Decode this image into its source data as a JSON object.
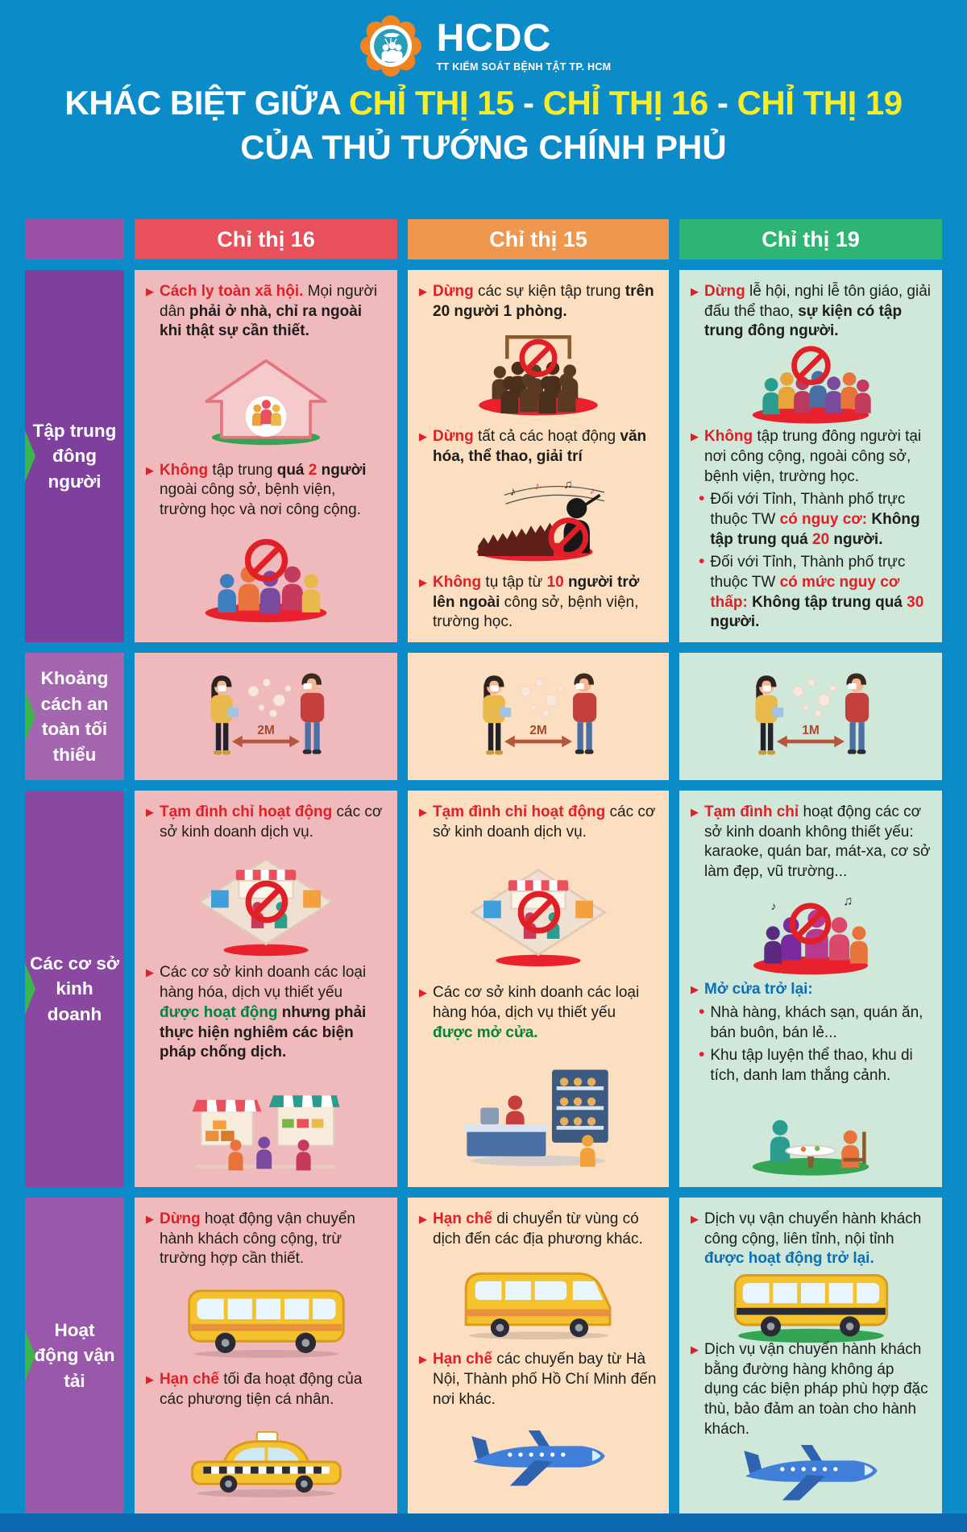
{
  "colors": {
    "background": "#0b8bc8",
    "accent_yellow": "#f9ed26",
    "directive16_red": "#e8505b",
    "directive15_orange": "#f0974f",
    "directive19_green": "#2fb573",
    "label_purple": "#8a48a1",
    "highlight_red": "#e01f26",
    "highlight_green": "#00843d",
    "highlight_blue": "#0c6fb5"
  },
  "icons": {
    "arrow": "▶",
    "dot": "•"
  },
  "logo": {
    "name": "HCDC",
    "subtitle": "TT KIỂM SOÁT BỆNH TẬT TP. HCM"
  },
  "title": {
    "line1": [
      {
        "t": "KHÁC BIỆT GIỮA ",
        "c": "w"
      },
      {
        "t": "CHỈ THỊ 15",
        "c": "y"
      },
      {
        "t": " -  ",
        "c": "w"
      },
      {
        "t": "CHỈ THỊ 16",
        "c": "y"
      },
      {
        "t": " -  ",
        "c": "w"
      },
      {
        "t": "CHỈ THỊ 19",
        "c": "y"
      }
    ],
    "line2": "CỦA THỦ TƯỚNG CHÍNH PHỦ"
  },
  "columns": {
    "c16": "Chỉ thị 16",
    "c15": "Chỉ thị 15",
    "c19": "Chỉ thị 19"
  },
  "rows": {
    "r1": "Tập trung đông người",
    "r2": "Khoảng cách an toàn tối thiểu",
    "r3": "Các cơ sở kinh doanh",
    "r4": "Hoạt động vận tải"
  },
  "distance": {
    "c16": "2M",
    "c15": "2M",
    "c19": "1M"
  },
  "cells": {
    "r1c16": {
      "i1": [
        {
          "t": "Cách ly toàn xã hội.",
          "c": "r"
        },
        {
          "t": " Mọi người dân "
        },
        {
          "t": "phải ở nhà, chỉ ra ngoài khi thật sự cần thiết.",
          "c": "k"
        }
      ],
      "i2": [
        {
          "t": "Không",
          "c": "r"
        },
        {
          "t": " tập trung "
        },
        {
          "t": "quá ",
          "c": "k"
        },
        {
          "t": "2",
          "c": "r"
        },
        {
          "t": " người",
          "c": "k"
        },
        {
          "t": " ngoài công sở, bệnh viện, trường học và nơi công cộng."
        }
      ]
    },
    "r1c15": {
      "i1": [
        {
          "t": "Dừng",
          "c": "r"
        },
        {
          "t": " các sự kiện tập trung "
        },
        {
          "t": "trên 20 người 1 phòng.",
          "c": "k"
        }
      ],
      "i2": [
        {
          "t": "Dừng",
          "c": "r"
        },
        {
          "t": " tất cả các hoạt động "
        },
        {
          "t": "văn hóa, thể thao, giải trí",
          "c": "k"
        }
      ],
      "i3": [
        {
          "t": "Không",
          "c": "r"
        },
        {
          "t": " tụ tập từ "
        },
        {
          "t": "10",
          "c": "r"
        },
        {
          "t": " người trở lên ngoài",
          "c": "k"
        },
        {
          "t": " công sở, bệnh viện, trường học."
        }
      ]
    },
    "r1c19": {
      "i1": [
        {
          "t": "Dừng",
          "c": "r"
        },
        {
          "t": " lễ hội, nghi lễ tôn giáo, giải đấu thể thao, "
        },
        {
          "t": "sự kiện có tập trung đông người.",
          "c": "k"
        }
      ],
      "i2": [
        {
          "t": "Không",
          "c": "r"
        },
        {
          "t": " tập trung đông người tại nơi công cộng, ngoài công sở, bệnh viện, trường học."
        }
      ],
      "b1": [
        {
          "t": "Đối với Tỉnh, Thành phố trực thuộc TW "
        },
        {
          "t": "có nguy cơ:",
          "c": "r"
        },
        {
          "t": " Không tập trung quá ",
          "c": "k"
        },
        {
          "t": "20",
          "c": "r"
        },
        {
          "t": " người.",
          "c": "k"
        }
      ],
      "b2": [
        {
          "t": "Đối với Tỉnh, Thành phố trực thuộc TW "
        },
        {
          "t": "có mức nguy cơ thấp:",
          "c": "r"
        },
        {
          "t": " Không tập trung quá ",
          "c": "k"
        },
        {
          "t": "30",
          "c": "r"
        },
        {
          "t": " người.",
          "c": "k"
        }
      ]
    },
    "r3c16": {
      "i1": [
        {
          "t": "Tạm đình chỉ hoạt động",
          "c": "r"
        },
        {
          "t": " các cơ sở kinh doanh dịch vụ."
        }
      ],
      "i2": [
        {
          "t": "Các cơ sở kinh doanh các loại hàng hóa, dịch vụ thiết yếu "
        },
        {
          "t": "được hoạt động",
          "c": "g"
        },
        {
          "t": " nhưng phải thực hiện nghiêm các biện pháp chống dịch.",
          "c": "k"
        }
      ]
    },
    "r3c15": {
      "i1": [
        {
          "t": "Tạm đình chỉ hoạt động",
          "c": "r"
        },
        {
          "t": " các cơ sở kinh doanh dịch vụ."
        }
      ],
      "i2": [
        {
          "t": "Các cơ sở kinh doanh các loại hàng hóa, dịch vụ thiết yếu "
        },
        {
          "t": "được mở cửa.",
          "c": "g"
        }
      ]
    },
    "r3c19": {
      "i1": [
        {
          "t": "Tạm đình chỉ",
          "c": "r"
        },
        {
          "t": " hoạt động các cơ sở kinh doanh không thiết yếu: karaoke, quán bar, mát-xa, cơ sở làm đẹp, vũ trường..."
        }
      ],
      "i2": [
        {
          "t": "Mở cửa trở lại:",
          "c": "b"
        }
      ],
      "b1": [
        {
          "t": "Nhà hàng, khách sạn, quán ăn, bán buôn, bán lẻ..."
        }
      ],
      "b2": [
        {
          "t": "Khu tập luyện thể thao, khu di tích, danh lam thắng cảnh."
        }
      ]
    },
    "r4c16": {
      "i1": [
        {
          "t": "Dừng",
          "c": "r"
        },
        {
          "t": " hoạt động vận chuyển hành khách công cộng, trừ trường hợp cần thiết."
        }
      ],
      "i2": [
        {
          "t": "Hạn chế",
          "c": "r"
        },
        {
          "t": " tối đa hoạt động của các phương tiện cá nhân."
        }
      ]
    },
    "r4c15": {
      "i1": [
        {
          "t": "Hạn chế",
          "c": "r"
        },
        {
          "t": " di chuyển từ vùng có dịch đến các địa phương khác."
        }
      ],
      "i2": [
        {
          "t": "Hạn chế",
          "c": "r"
        },
        {
          "t": " các chuyến bay từ Hà Nội, Thành phố Hồ Chí Minh đến nơi khác."
        }
      ]
    },
    "r4c19": {
      "i1": [
        {
          "t": "Dịch vụ vận chuyển hành khách công cộng, liên tỉnh, nội tỉnh "
        },
        {
          "t": "được hoạt động trở lại.",
          "c": "b"
        }
      ],
      "i2": [
        {
          "t": "Dịch vụ vận chuyển hành khách bằng đường hàng không áp dụng các biện pháp phù hợp đặc thù, bảo đảm an toàn cho hành khách."
        }
      ]
    }
  }
}
